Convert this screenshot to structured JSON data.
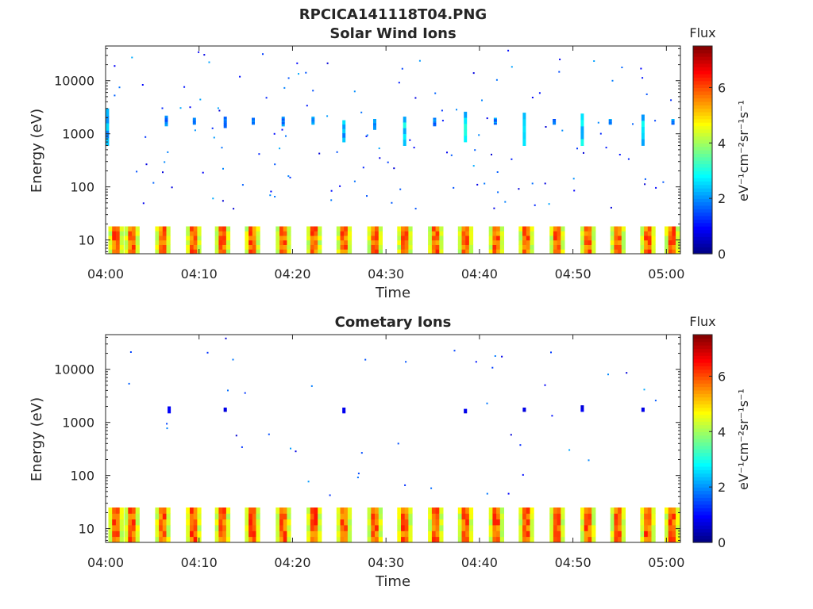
{
  "figure": {
    "title": "RPCICA141118T04.PNG"
  },
  "chart_data": [
    {
      "type": "heatmap",
      "title": "Solar Wind Ions",
      "xlabel": "Time",
      "ylabel": "Energy (eV)",
      "x_ticks": [
        "04:00",
        "04:10",
        "04:20",
        "04:30",
        "04:40",
        "04:50",
        "05:00"
      ],
      "x_range_minutes": [
        0,
        61.5
      ],
      "y_scale": "log",
      "y_ticks": [
        10,
        100,
        1000,
        10000
      ],
      "y_tick_labels": [
        "10",
        "100",
        "1000",
        "10000"
      ],
      "y_range": [
        5.5,
        45000
      ],
      "colorbar": {
        "label": "Flux",
        "units": "eV⁻¹cm⁻²sr⁻¹s⁻¹",
        "range": [
          0,
          7.5
        ],
        "ticks": [
          0,
          2,
          4,
          6
        ],
        "colormap": "jet"
      },
      "sweep_minutes": [
        0.3,
        2.0,
        5.3,
        8.6,
        11.7,
        14.9,
        18.2,
        21.5,
        24.7,
        28.0,
        31.2,
        34.5,
        37.7,
        41.0,
        44.2,
        47.5,
        50.8,
        54.0,
        57.2,
        59.8
      ],
      "low_energy_band": {
        "e_min": 5.5,
        "e_max": 18,
        "level_min": 2,
        "level_max": 7.2
      },
      "bursts": [
        {
          "t": 0.2,
          "e": [
            600,
            3000
          ],
          "level": 2.2
        },
        {
          "t": 6.5,
          "e": [
            1400,
            2200
          ],
          "level": 1.8
        },
        {
          "t": 9.5,
          "e": [
            1500,
            2000
          ],
          "level": 1.8
        },
        {
          "t": 12.8,
          "e": [
            1300,
            2100
          ],
          "level": 1.9
        },
        {
          "t": 15.8,
          "e": [
            1500,
            2000
          ],
          "level": 1.9
        },
        {
          "t": 19.0,
          "e": [
            1400,
            2100
          ],
          "level": 1.9
        },
        {
          "t": 22.2,
          "e": [
            1500,
            2100
          ],
          "level": 2.0
        },
        {
          "t": 25.5,
          "e": [
            700,
            1800
          ],
          "level": 2.2
        },
        {
          "t": 28.8,
          "e": [
            1200,
            1900
          ],
          "level": 2.0
        },
        {
          "t": 32.0,
          "e": [
            600,
            2100
          ],
          "level": 2.6
        },
        {
          "t": 35.2,
          "e": [
            1400,
            2000
          ],
          "level": 1.9
        },
        {
          "t": 38.5,
          "e": [
            700,
            2600
          ],
          "level": 2.6
        },
        {
          "t": 41.7,
          "e": [
            1500,
            2000
          ],
          "level": 1.9
        },
        {
          "t": 44.8,
          "e": [
            600,
            2500
          ],
          "level": 2.4
        },
        {
          "t": 48.0,
          "e": [
            1500,
            1900
          ],
          "level": 1.8
        },
        {
          "t": 51.0,
          "e": [
            600,
            2400
          ],
          "level": 2.6
        },
        {
          "t": 54.0,
          "e": [
            1500,
            1900
          ],
          "level": 1.9
        },
        {
          "t": 57.5,
          "e": [
            600,
            2300
          ],
          "level": 2.5
        },
        {
          "t": 60.7,
          "e": [
            1500,
            1900
          ],
          "level": 2.0
        }
      ],
      "scatter_seed": 7,
      "scatter_count": 140
    },
    {
      "type": "heatmap",
      "title": "Cometary Ions",
      "xlabel": "Time",
      "ylabel": "Energy (eV)",
      "x_ticks": [
        "04:00",
        "04:10",
        "04:20",
        "04:30",
        "04:40",
        "04:50",
        "05:00"
      ],
      "x_range_minutes": [
        0,
        61.5
      ],
      "y_scale": "log",
      "y_ticks": [
        10,
        100,
        1000,
        10000
      ],
      "y_tick_labels": [
        "10",
        "100",
        "1000",
        "10000"
      ],
      "y_range": [
        5.5,
        45000
      ],
      "colorbar": {
        "label": "Flux",
        "units": "eV⁻¹cm⁻²sr⁻¹s⁻¹",
        "range": [
          0,
          7.5
        ],
        "ticks": [
          0,
          2,
          4,
          6
        ],
        "colormap": "jet"
      },
      "sweep_minutes": [
        0.3,
        2.0,
        5.3,
        8.6,
        11.7,
        14.9,
        18.2,
        21.5,
        24.7,
        28.0,
        31.2,
        34.5,
        37.7,
        41.0,
        44.2,
        47.5,
        50.8,
        54.0,
        57.2,
        59.8
      ],
      "low_energy_band": {
        "e_min": 5.5,
        "e_max": 25,
        "level_min": 2,
        "level_max": 7.3
      },
      "bursts": [
        {
          "t": 6.8,
          "e": [
            1500,
            2000
          ],
          "level": 0.8
        },
        {
          "t": 12.8,
          "e": [
            1600,
            1900
          ],
          "level": 0.8
        },
        {
          "t": 25.5,
          "e": [
            1500,
            1900
          ],
          "level": 0.8
        },
        {
          "t": 38.5,
          "e": [
            1500,
            1800
          ],
          "level": 0.8
        },
        {
          "t": 44.8,
          "e": [
            1600,
            1900
          ],
          "level": 0.8
        },
        {
          "t": 51.0,
          "e": [
            1600,
            2100
          ],
          "level": 0.8
        },
        {
          "t": 57.5,
          "e": [
            1600,
            1900
          ],
          "level": 0.8
        }
      ],
      "scatter_seed": 23,
      "scatter_count": 45
    }
  ]
}
